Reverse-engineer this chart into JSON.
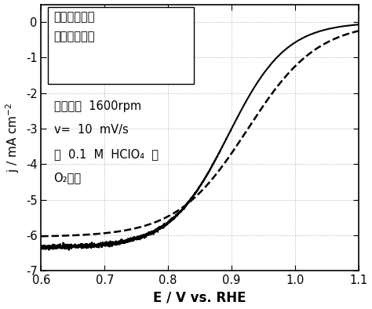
{
  "xlim": [
    0.6,
    1.1
  ],
  "ylim": [
    -7,
    0.5
  ],
  "xticks": [
    0.6,
    0.7,
    0.8,
    0.9,
    1.0,
    1.1
  ],
  "yticks": [
    0,
    -1,
    -2,
    -3,
    -4,
    -5,
    -6,
    -7
  ],
  "xlabel": "E / V vs. RHE",
  "ylabel": "j / mA cm$^{-2}$",
  "solid_color": "#000000",
  "dashed_color": "#000000",
  "background_color": "#ffffff",
  "ann1": "虚线：浸渏前",
  "ann2": "实线：浸渏后",
  "ann3": "电极旋转  1600rpm",
  "ann4": "v=  10  mV/s",
  "ann5": "在  0.1  M  HClO₄  中",
  "ann6": "O₂气氛",
  "solid_E12": 0.895,
  "solid_jlim": -6.35,
  "solid_slope": 22,
  "dashed_E12": 0.925,
  "dashed_jlim": -6.05,
  "dashed_slope": 18,
  "figsize": [
    4.74,
    3.94
  ],
  "dpi": 100
}
